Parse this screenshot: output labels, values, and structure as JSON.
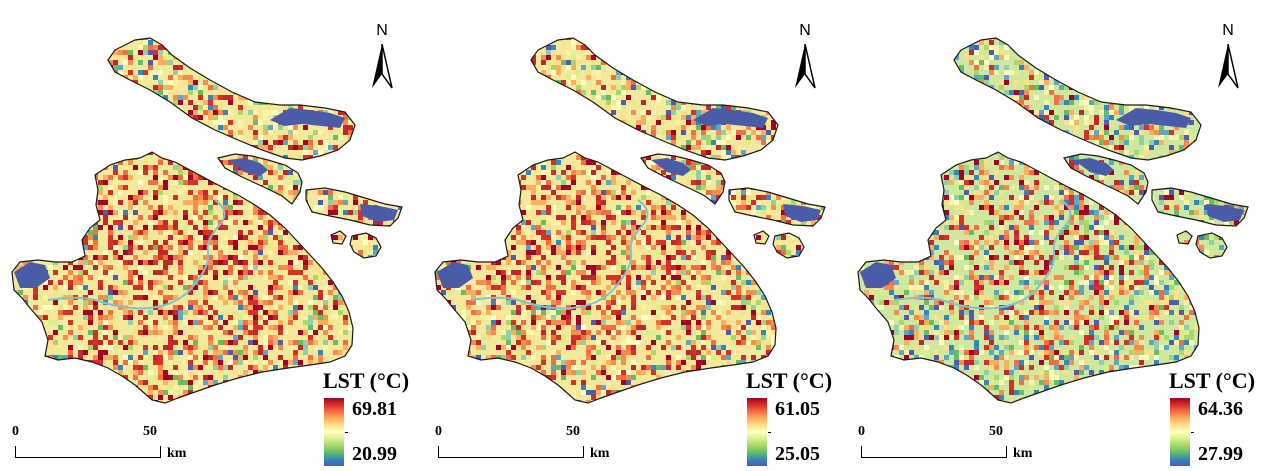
{
  "panels": [
    {
      "id": "a",
      "legend_title": "LST (°C)",
      "max": "69.81",
      "min": "20.99",
      "tone": "hot"
    },
    {
      "id": "b",
      "legend_title": "LST (°C)",
      "max": "61.05",
      "min": "25.05",
      "tone": "warm"
    },
    {
      "id": "c",
      "legend_title": "LST (°C)",
      "max": "64.36",
      "min": "27.99",
      "tone": "cool"
    }
  ],
  "north_label": "N",
  "scalebar": {
    "start": "0",
    "end": "50",
    "unit": "km"
  },
  "colors": {
    "ramp_high": "#a50026",
    "ramp_mid": "#ffffbf",
    "ramp_low": "#4d5bb0",
    "water": "#4a5ba8",
    "outline": "#1a1a1a"
  }
}
